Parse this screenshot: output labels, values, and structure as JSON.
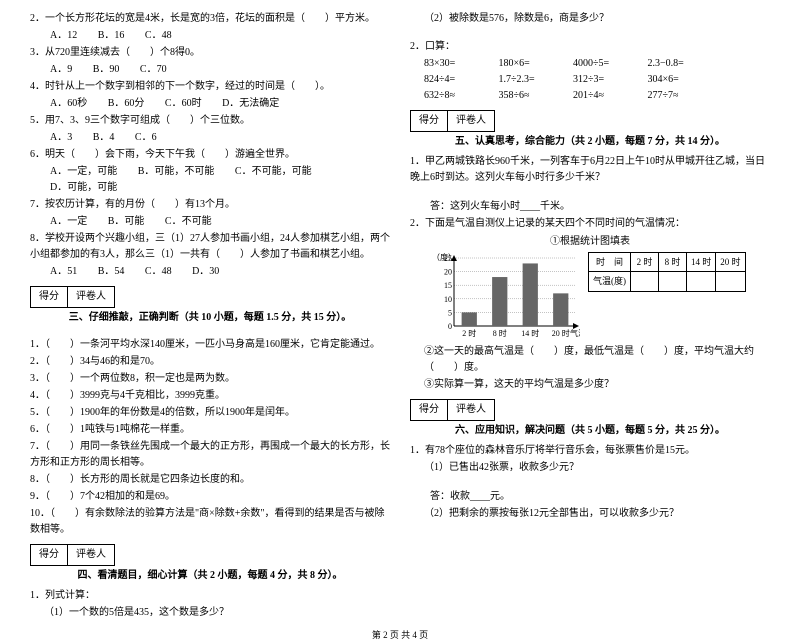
{
  "left": {
    "q2": "2．一个长方形花坛的宽是4米，长是宽的3倍，花坛的面积是（　　）平方米。",
    "q2_opts": [
      "A．12",
      "B．16",
      "C．48"
    ],
    "q3": "3．从720里连续减去（　　）个8得0。",
    "q3_opts": [
      "A．9",
      "B．90",
      "C．70"
    ],
    "q4": "4．时针从上一个数字到相邻的下一个数字，经过的时间是（　　）。",
    "q4_opts": [
      "A．60秒",
      "B．60分",
      "C．60时",
      "D．无法确定"
    ],
    "q5": "5．用7、3、9三个数字可组成（　　）个三位数。",
    "q5_opts": [
      "A．3",
      "B．4",
      "C．6"
    ],
    "q6": "6．明天（　　）会下雨，今天下午我（　　）游遍全世界。",
    "q6_opts": [
      "A．一定，可能",
      "B．可能，不可能",
      "C．不可能，可能",
      "D．可能，可能"
    ],
    "q7": "7．按农历计算，有的月份（　　）有13个月。",
    "q7_opts": [
      "A．一定",
      "B．可能",
      "C．不可能"
    ],
    "q8": "8．学校开设两个兴趣小组，三（1）27人参加书画小组，24人参加棋艺小组，两个小组都参加的有3人，那么三（1）一共有（　　）人参加了书画和棋艺小组。",
    "q8_opts": [
      "A．51",
      "B．54",
      "C．48",
      "D．30"
    ],
    "score_labels": [
      "得分",
      "评卷人"
    ],
    "sec3_title": "三、仔细推敲，正确判断（共 10 小题，每题 1.5 分，共 15 分）。",
    "j": [
      "1．（　　）一条河平均水深140厘米，一匹小马身高是160厘米，它肯定能通过。",
      "2．（　　）34与46的和是70。",
      "3．（　　）一个两位数8，积一定也是两为数。",
      "4．（　　）3999克与4千克相比，3999克重。",
      "5．（　　）1900年的年份数是4的倍数，所以1900年是闰年。",
      "6．（　　）1吨铁与1吨棉花一样重。",
      "7．（　　）用同一条铁丝先围成一个最大的正方形，再围成一个最大的长方形，长方形和正方形的周长相等。",
      "8．（　　）长方形的周长就是它四条边长度的和。",
      "9．（　　）7个42相加的和是69。",
      "10．（　　）有余数除法的验算方法是\"商×除数+余数\"，看得到的结果是否与被除数相等。"
    ],
    "sec4_title": "四、看清题目，细心计算（共 2 小题，每题 4 分，共 8 分）。",
    "c1": "1．列式计算：",
    "c1a": "（1）一个数的5倍是435，这个数是多少？"
  },
  "right": {
    "c1b": "（2）被除数是576，除数是6，商是多少？",
    "c2": "2．口算：",
    "calc": [
      [
        "83×30=",
        "180×6=",
        "4000÷5=",
        "2.3−0.8="
      ],
      [
        "824÷4=",
        "1.7÷2.3=",
        "312÷3=",
        "304×6="
      ],
      [
        "632÷8≈",
        "358÷6≈",
        "201÷4≈",
        "277÷7≈"
      ]
    ],
    "sec5_title": "五、认真思考，综合能力（共 2 小题，每题 7 分，共 14 分）。",
    "p1": "1．甲乙两城铁路长960千米，一列客车于6月22日上午10时从甲城开往乙城，当日晚上6时到达。这列火车每小时行多少千米？",
    "p1_ans": "答：这列火车每小时____千米。",
    "p2": "2．下面是气温自测仪上记录的某天四个不同时间的气温情况：",
    "chart_title": "①根据统计图填表",
    "chart": {
      "y_ticks": [
        25,
        20,
        15,
        10,
        5,
        0
      ],
      "y_label": "（度）",
      "x_vals": [
        "2 时",
        "8 时",
        "14 时",
        "20 时"
      ],
      "x_label": "气温",
      "bar_values": [
        5,
        18,
        23,
        12
      ],
      "y_max": 25,
      "bar_color": "#666666",
      "grid_color": "#888888",
      "bg_color": "#ffffff",
      "axis_color": "#000000",
      "width": 150,
      "height": 90,
      "font_size": 8
    },
    "table": {
      "headers": [
        "时　间",
        "2 时",
        "8 时",
        "14 时",
        "20 时"
      ],
      "row_label": "气温(度)"
    },
    "p2b": "②这一天的最高气温是（　　）度，最低气温是（　　）度，平均气温大约（　　）度。",
    "p2c": "③实际算一算，这天的平均气温是多少度？",
    "sec6_title": "六、应用知识，解决问题（共 5 小题，每题 5 分，共 25 分）。",
    "a1": "1．有78个座位的森林音乐厅将举行音乐会，每张票售价是15元。",
    "a1a": "（1）已售出42张票，收款多少元？",
    "a1_ans": "答：收款____元。",
    "a1b": "（2）把剩余的票按每张12元全部售出，可以收款多少元？"
  },
  "footer": "第 2 页 共 4 页"
}
